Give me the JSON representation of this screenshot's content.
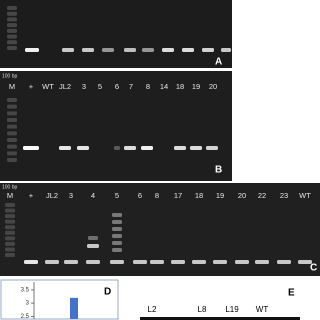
{
  "panel_a": {
    "label": "A"
  },
  "panel_b": {
    "size_marker": "100 bp",
    "lanes": [
      "M",
      "+",
      "WT",
      "JL2",
      "3",
      "5",
      "6",
      "7",
      "8",
      "14",
      "18",
      "19",
      "20"
    ],
    "label": "B"
  },
  "panel_c": {
    "size_marker": "100 bp",
    "lanes": [
      "M",
      "+",
      "JL2",
      "3",
      "4",
      "5",
      "6",
      "8",
      "17",
      "18",
      "19",
      "20",
      "22",
      "23",
      "WT"
    ],
    "label": "C"
  },
  "panel_d": {
    "label": "D",
    "chart_data": {
      "type": "bar",
      "values": [
        3.2
      ],
      "color": "#4472c4",
      "ylim": [
        2.4,
        3.8
      ],
      "yticks": [
        3.5,
        3,
        2.5
      ]
    }
  },
  "panel_e": {
    "label": "E",
    "lanes": [
      "L2",
      "L8",
      "L19",
      "WT"
    ]
  }
}
